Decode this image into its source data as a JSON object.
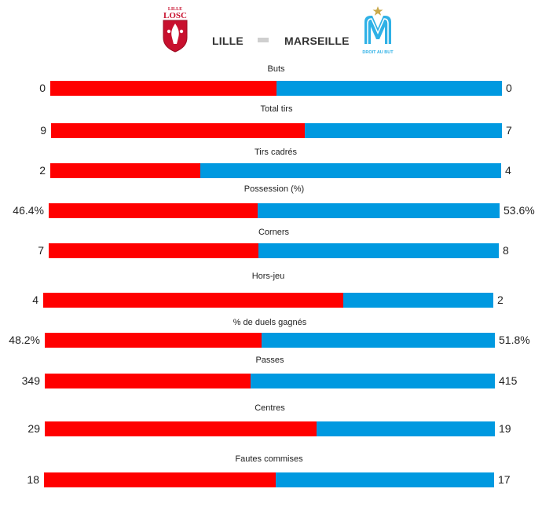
{
  "teams": {
    "home": {
      "name": "LILLE",
      "color": "#ff0000",
      "logo": {
        "top": "LILLE",
        "main": "LOSC"
      }
    },
    "away": {
      "name": "MARSEILLE",
      "color": "#0099e0",
      "logo": {
        "motto": "DROIT AU BUT"
      }
    }
  },
  "chart_data": {
    "type": "bar",
    "orientation": "horizontal-stacked",
    "categories": [
      "Buts",
      "Total tirs",
      "Tirs cadrés",
      "Possession (%)",
      "Corners",
      "Hors-jeu",
      "% de duels gagnés",
      "Passes",
      "Centres",
      "Fautes commises"
    ],
    "series": [
      {
        "name": "LILLE",
        "color": "#ff0000",
        "values": [
          0,
          9,
          2,
          46.4,
          7,
          4,
          48.2,
          349,
          29,
          18
        ],
        "labels": [
          "0",
          "9",
          "2",
          "46.4%",
          "7",
          "4",
          "48.2%",
          "349",
          "29",
          "18"
        ]
      },
      {
        "name": "MARSEILLE",
        "color": "#0099e0",
        "values": [
          0,
          7,
          4,
          53.6,
          8,
          2,
          51.8,
          415,
          19,
          17
        ],
        "labels": [
          "0",
          "7",
          "4",
          "53.6%",
          "8",
          "2",
          "51.8%",
          "415",
          "19",
          "17"
        ]
      }
    ]
  }
}
